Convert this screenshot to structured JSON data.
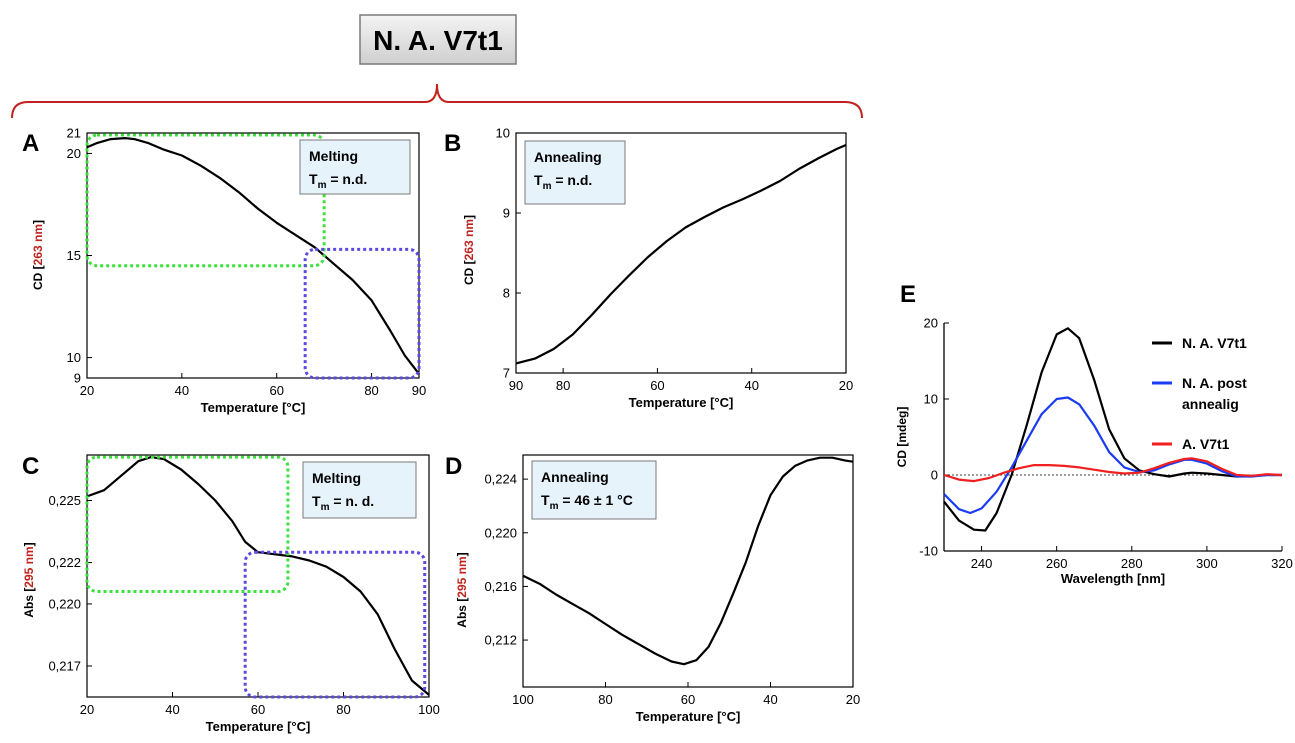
{
  "figure_title": "N. A. V7t1",
  "chart_data": [
    {
      "panel": "A",
      "type": "line",
      "xlabel": "Temperature [°C]",
      "ylabel_prefix": "CD [",
      "ylabel_highlight": "263 nm",
      "ylabel_suffix": "]",
      "xlim": [
        20,
        90
      ],
      "ylim": [
        9,
        21
      ],
      "xticks": [
        20,
        40,
        60,
        80,
        90
      ],
      "yticks": [
        9,
        10,
        15,
        20,
        21
      ],
      "ytick_labels": [
        "9",
        "10",
        "15",
        "20",
        "21"
      ],
      "label_box": {
        "line1": "Melting",
        "line2_main": "T",
        "line2_sub": "m",
        "line2_rest": " = n.d."
      },
      "series": [
        {
          "color": "#000000",
          "x": [
            20,
            22,
            25,
            28,
            30,
            33,
            36,
            40,
            44,
            48,
            52,
            56,
            60,
            64,
            68,
            72,
            76,
            80,
            84,
            87,
            90
          ],
          "y": [
            20.3,
            20.5,
            20.7,
            20.75,
            20.7,
            20.5,
            20.2,
            19.9,
            19.4,
            18.8,
            18.1,
            17.3,
            16.6,
            16.0,
            15.4,
            14.6,
            13.8,
            12.8,
            11.3,
            10.1,
            9.2
          ]
        }
      ],
      "highlight_regions": [
        {
          "color": "#3de03d",
          "xrange": [
            20,
            70
          ],
          "yrange": [
            14.5,
            20.9
          ]
        },
        {
          "color": "#5a4ae0",
          "xrange": [
            66,
            90
          ],
          "yrange": [
            9,
            15.3
          ]
        }
      ]
    },
    {
      "panel": "B",
      "type": "line",
      "xlabel": "Temperature [°C]",
      "ylabel_prefix": "CD [",
      "ylabel_highlight": "263 nm",
      "ylabel_suffix": "]",
      "xlim": [
        90,
        20
      ],
      "ylim": [
        7,
        10
      ],
      "xticks": [
        90,
        80,
        60,
        40,
        20
      ],
      "yticks": [
        7,
        8,
        9,
        10
      ],
      "ytick_labels": [
        "7",
        "8",
        "9",
        "10"
      ],
      "label_box": {
        "line1": "Annealing",
        "line2_main": "T",
        "line2_sub": "m",
        "line2_rest": " = n.d."
      },
      "series": [
        {
          "color": "#000000",
          "x": [
            90,
            86,
            82,
            78,
            74,
            70,
            66,
            62,
            58,
            54,
            50,
            46,
            42,
            38,
            34,
            30,
            26,
            22,
            20
          ],
          "y": [
            7.12,
            7.18,
            7.3,
            7.48,
            7.72,
            7.98,
            8.22,
            8.45,
            8.65,
            8.82,
            8.95,
            9.07,
            9.17,
            9.28,
            9.4,
            9.55,
            9.68,
            9.8,
            9.85
          ]
        }
      ],
      "highlight_regions": []
    },
    {
      "panel": "C",
      "type": "line",
      "xlabel": "Temperature [°C]",
      "ylabel_prefix": "Abs [",
      "ylabel_highlight": "295 nm",
      "ylabel_suffix": "]",
      "xlim": [
        20,
        100
      ],
      "ylim": [
        0.2155,
        0.2272
      ],
      "xticks": [
        20,
        40,
        60,
        80,
        100
      ],
      "yticks": [
        0.217,
        0.22,
        0.222,
        0.225
      ],
      "ytick_labels": [
        "0,217",
        "0,220",
        "0,222",
        "0,225"
      ],
      "label_box": {
        "line1": "Melting",
        "line2_main": "T",
        "line2_sub": "m",
        "line2_rest": " = n. d."
      },
      "series": [
        {
          "color": "#000000",
          "x": [
            20,
            24,
            28,
            32,
            35,
            38,
            42,
            46,
            50,
            54,
            57,
            60,
            64,
            68,
            72,
            76,
            80,
            84,
            88,
            92,
            96,
            100
          ],
          "y": [
            0.2252,
            0.2255,
            0.2262,
            0.2269,
            0.2271,
            0.227,
            0.2265,
            0.2258,
            0.225,
            0.224,
            0.223,
            0.2225,
            0.2224,
            0.2223,
            0.2221,
            0.2218,
            0.2213,
            0.2206,
            0.2195,
            0.2178,
            0.2163,
            0.2156
          ]
        }
      ],
      "highlight_regions": [
        {
          "color": "#3de03d",
          "xrange": [
            20,
            67
          ],
          "yrange": [
            0.2206,
            0.2271
          ]
        },
        {
          "color": "#5a4ae0",
          "xrange": [
            57,
            99
          ],
          "yrange": [
            0.2155,
            0.2225
          ]
        }
      ]
    },
    {
      "panel": "D",
      "type": "line",
      "xlabel": "Temperature [°C]",
      "ylabel_prefix": "Abs [",
      "ylabel_highlight": "295 nm",
      "ylabel_suffix": "]",
      "xlim": [
        100,
        20
      ],
      "ylim": [
        0.2085,
        0.2258
      ],
      "xticks": [
        100,
        80,
        60,
        40,
        20
      ],
      "yticks": [
        0.212,
        0.216,
        0.22,
        0.224
      ],
      "ytick_labels": [
        "0,212",
        "0,216",
        "0,220",
        "0,224"
      ],
      "label_box": {
        "line1": "Annealing",
        "line2_main": "T",
        "line2_sub": "m",
        "line2_rest": " = 46 ± 1 °C"
      },
      "series": [
        {
          "color": "#000000",
          "x": [
            100,
            96,
            92,
            88,
            84,
            80,
            76,
            72,
            68,
            64,
            61,
            58,
            55,
            52,
            49,
            46,
            43,
            40,
            37,
            34,
            31,
            28,
            25,
            22,
            20
          ],
          "y": [
            0.2168,
            0.2162,
            0.2154,
            0.2147,
            0.214,
            0.2132,
            0.2124,
            0.2117,
            0.211,
            0.2104,
            0.2102,
            0.2105,
            0.2115,
            0.2133,
            0.2155,
            0.2178,
            0.2205,
            0.2228,
            0.2242,
            0.225,
            0.2254,
            0.2256,
            0.2256,
            0.2254,
            0.2253
          ]
        }
      ],
      "highlight_regions": []
    },
    {
      "panel": "E",
      "type": "line",
      "xlabel": "Wavelength [nm]",
      "ylabel": "CD [mdeg]",
      "xlim": [
        230,
        320
      ],
      "ylim": [
        -10,
        20
      ],
      "xticks": [
        240,
        260,
        280,
        300,
        320
      ],
      "yticks": [
        -10,
        0,
        10,
        20
      ],
      "ytick_labels": [
        "-10",
        "0",
        "10",
        "20"
      ],
      "zero_line": true,
      "series": [
        {
          "name_lines": [
            "N. A. V7t1"
          ],
          "color": "#000000",
          "x": [
            230,
            234,
            238,
            241,
            244,
            248,
            252,
            256,
            260,
            263,
            266,
            270,
            274,
            278,
            282,
            286,
            290,
            294,
            296,
            300,
            304,
            308,
            312,
            316,
            320
          ],
          "y": [
            -3.5,
            -6.0,
            -7.2,
            -7.3,
            -5.0,
            0.0,
            6.5,
            13.5,
            18.5,
            19.3,
            18.0,
            12.5,
            6.0,
            2.2,
            0.6,
            0.1,
            -0.2,
            0.2,
            0.3,
            0.2,
            0.0,
            -0.2,
            -0.1,
            0.0,
            0.0
          ]
        },
        {
          "name_lines": [
            "N. A. post",
            "annealig"
          ],
          "color": "#1a3cf5",
          "x": [
            230,
            234,
            237,
            240,
            244,
            248,
            252,
            256,
            260,
            263,
            266,
            270,
            274,
            278,
            282,
            286,
            290,
            294,
            296,
            300,
            304,
            308,
            312,
            316,
            320
          ],
          "y": [
            -2.5,
            -4.5,
            -5.0,
            -4.4,
            -2.2,
            1.0,
            4.5,
            8.0,
            10.0,
            10.2,
            9.3,
            6.5,
            3.0,
            1.0,
            0.4,
            0.6,
            1.4,
            2.0,
            2.0,
            1.5,
            0.5,
            -0.2,
            -0.2,
            0.0,
            0.0
          ]
        },
        {
          "name_lines": [
            "A. V7t1"
          ],
          "color": "#f02020",
          "x": [
            230,
            234,
            238,
            242,
            246,
            250,
            254,
            258,
            262,
            266,
            270,
            274,
            278,
            282,
            286,
            290,
            294,
            296,
            300,
            304,
            308,
            312,
            316,
            320
          ],
          "y": [
            0.0,
            -0.6,
            -0.8,
            -0.4,
            0.3,
            0.9,
            1.3,
            1.3,
            1.2,
            1.0,
            0.7,
            0.4,
            0.2,
            0.3,
            0.9,
            1.6,
            2.1,
            2.2,
            1.8,
            0.8,
            0.0,
            -0.1,
            0.1,
            0.0
          ]
        }
      ]
    }
  ]
}
